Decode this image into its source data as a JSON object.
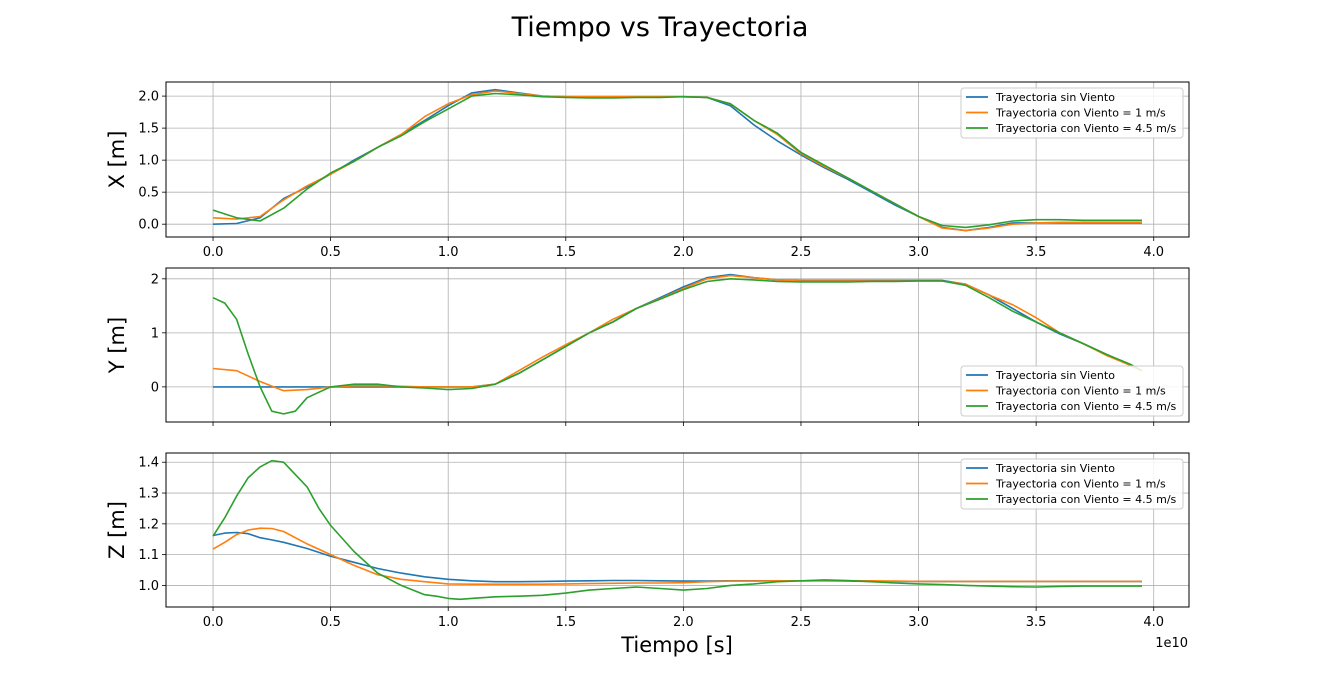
{
  "figure": {
    "title": "Tiempo vs Trayectoria",
    "xlabel": "Tiempo [s]",
    "x_offset_text": "1e10"
  },
  "colors": {
    "sin_viento": "#1f77b4",
    "viento_1": "#ff7f0e",
    "viento_45": "#2ca02c",
    "grid": "#b0b0b0"
  },
  "chart_data": [
    {
      "type": "line",
      "ylabel": "X [m]",
      "grid": true,
      "legend_position": "upper right",
      "xlim": [
        -0.2,
        4.15
      ],
      "ylim": [
        -0.2,
        2.22
      ],
      "x_ticks": [
        0.0,
        0.5,
        1.0,
        1.5,
        2.0,
        2.5,
        3.0,
        3.5,
        4.0
      ],
      "x_tick_labels": [
        "0.0",
        "0.5",
        "1.0",
        "1.5",
        "2.0",
        "2.5",
        "3.0",
        "3.5",
        "4.0"
      ],
      "y_ticks": [
        0.0,
        0.5,
        1.0,
        1.5,
        2.0
      ],
      "y_tick_labels": [
        "0.0",
        "0.5",
        "1.0",
        "1.5",
        "2.0"
      ],
      "series": [
        {
          "name": "Trayectoria sin Viento",
          "x": [
            0,
            0.1,
            0.2,
            0.3,
            0.4,
            0.5,
            0.6,
            0.7,
            0.8,
            0.9,
            1.0,
            1.1,
            1.2,
            1.3,
            1.4,
            1.5,
            1.6,
            1.7,
            1.8,
            1.9,
            2.0,
            2.1,
            2.2,
            2.3,
            2.4,
            2.5,
            2.6,
            2.7,
            2.8,
            2.9,
            3.0,
            3.1,
            3.2,
            3.3,
            3.4,
            3.5,
            3.6,
            3.7,
            3.8,
            3.9,
            3.95
          ],
          "y": [
            0.0,
            0.01,
            0.1,
            0.4,
            0.58,
            0.78,
            1.0,
            1.2,
            1.4,
            1.62,
            1.85,
            2.05,
            2.1,
            2.05,
            2.0,
            1.99,
            1.99,
            1.99,
            1.99,
            1.99,
            1.99,
            1.98,
            1.85,
            1.55,
            1.3,
            1.08,
            0.88,
            0.7,
            0.5,
            0.3,
            0.12,
            -0.05,
            -0.1,
            -0.05,
            0.02,
            0.02,
            0.02,
            0.02,
            0.02,
            0.02,
            0.02
          ]
        },
        {
          "name": "Trayectoria con Viento = 1 m/s",
          "x": [
            0,
            0.1,
            0.2,
            0.3,
            0.4,
            0.5,
            0.6,
            0.7,
            0.8,
            0.9,
            1.0,
            1.1,
            1.2,
            1.3,
            1.4,
            1.5,
            1.6,
            1.7,
            1.8,
            1.9,
            2.0,
            2.1,
            2.2,
            2.3,
            2.4,
            2.5,
            2.6,
            2.7,
            2.8,
            2.9,
            3.0,
            3.1,
            3.2,
            3.3,
            3.4,
            3.5,
            3.6,
            3.7,
            3.8,
            3.9,
            3.95
          ],
          "y": [
            0.1,
            0.08,
            0.12,
            0.38,
            0.6,
            0.78,
            0.98,
            1.2,
            1.4,
            1.68,
            1.88,
            2.02,
            2.08,
            2.04,
            2.0,
            1.99,
            1.99,
            1.99,
            1.99,
            1.99,
            1.99,
            1.98,
            1.88,
            1.62,
            1.4,
            1.1,
            0.9,
            0.72,
            0.52,
            0.32,
            0.12,
            -0.06,
            -0.1,
            -0.06,
            0.0,
            0.02,
            0.03,
            0.03,
            0.03,
            0.03,
            0.03
          ]
        },
        {
          "name": "Trayectoria con Viento = 4.5 m/s",
          "x": [
            0,
            0.1,
            0.2,
            0.3,
            0.4,
            0.5,
            0.6,
            0.7,
            0.8,
            0.9,
            1.0,
            1.1,
            1.2,
            1.3,
            1.4,
            1.5,
            1.6,
            1.7,
            1.8,
            1.9,
            2.0,
            2.1,
            2.2,
            2.3,
            2.4,
            2.5,
            2.6,
            2.7,
            2.8,
            2.9,
            3.0,
            3.1,
            3.2,
            3.3,
            3.4,
            3.5,
            3.6,
            3.7,
            3.8,
            3.9,
            3.95
          ],
          "y": [
            0.22,
            0.1,
            0.05,
            0.25,
            0.55,
            0.8,
            0.98,
            1.2,
            1.38,
            1.6,
            1.8,
            2.0,
            2.04,
            2.02,
            1.99,
            1.98,
            1.97,
            1.97,
            1.98,
            1.98,
            1.99,
            1.98,
            1.88,
            1.62,
            1.42,
            1.12,
            0.92,
            0.72,
            0.52,
            0.32,
            0.12,
            -0.02,
            -0.05,
            -0.01,
            0.05,
            0.07,
            0.07,
            0.06,
            0.06,
            0.06,
            0.06
          ]
        }
      ]
    },
    {
      "type": "line",
      "ylabel": "Y [m]",
      "grid": true,
      "legend_position": "lower right",
      "xlim": [
        -0.2,
        4.15
      ],
      "ylim": [
        -0.65,
        2.2
      ],
      "x_ticks": [
        0.0,
        0.5,
        1.0,
        1.5,
        2.0,
        2.5,
        3.0,
        3.5,
        4.0
      ],
      "x_tick_labels": [
        "",
        "",
        "",
        "",
        "",
        "",
        "",
        "",
        ""
      ],
      "y_ticks": [
        0,
        1,
        2
      ],
      "y_tick_labels": [
        "0",
        "1",
        "2"
      ],
      "series": [
        {
          "name": "Trayectoria sin Viento",
          "x": [
            0,
            0.1,
            0.2,
            0.3,
            0.4,
            0.5,
            0.6,
            0.7,
            0.8,
            0.9,
            1.0,
            1.1,
            1.2,
            1.3,
            1.4,
            1.5,
            1.6,
            1.7,
            1.8,
            1.9,
            2.0,
            2.1,
            2.2,
            2.3,
            2.4,
            2.5,
            2.6,
            2.7,
            2.8,
            2.9,
            3.0,
            3.1,
            3.2,
            3.3,
            3.4,
            3.5,
            3.6,
            3.7,
            3.8,
            3.9,
            3.95
          ],
          "y": [
            0,
            0,
            0,
            0,
            0,
            0,
            0,
            0,
            0,
            0,
            0,
            0,
            0.05,
            0.25,
            0.5,
            0.75,
            1.0,
            1.2,
            1.45,
            1.65,
            1.85,
            2.02,
            2.08,
            2.02,
            1.98,
            1.97,
            1.97,
            1.97,
            1.97,
            1.97,
            1.97,
            1.97,
            1.9,
            1.7,
            1.45,
            1.2,
            0.98,
            0.8,
            0.6,
            0.4,
            0.3
          ]
        },
        {
          "name": "Trayectoria con Viento = 1 m/s",
          "x": [
            0,
            0.1,
            0.2,
            0.3,
            0.4,
            0.5,
            0.6,
            0.7,
            0.8,
            0.9,
            1.0,
            1.1,
            1.2,
            1.3,
            1.4,
            1.5,
            1.6,
            1.7,
            1.8,
            1.9,
            2.0,
            2.1,
            2.2,
            2.3,
            2.4,
            2.5,
            2.6,
            2.7,
            2.8,
            2.9,
            3.0,
            3.1,
            3.2,
            3.3,
            3.4,
            3.5,
            3.6,
            3.7,
            3.8,
            3.9,
            3.95
          ],
          "y": [
            0.34,
            0.3,
            0.1,
            -0.07,
            -0.05,
            0.0,
            0.02,
            0.02,
            0.01,
            0.0,
            0.0,
            0.0,
            0.05,
            0.3,
            0.55,
            0.78,
            1.0,
            1.25,
            1.45,
            1.63,
            1.82,
            2.0,
            2.06,
            2.02,
            1.98,
            1.96,
            1.96,
            1.96,
            1.96,
            1.96,
            1.96,
            1.96,
            1.9,
            1.7,
            1.52,
            1.28,
            1.0,
            0.8,
            0.58,
            0.4,
            0.3
          ]
        },
        {
          "name": "Trayectoria con Viento = 4.5 m/s",
          "x": [
            0,
            0.05,
            0.1,
            0.15,
            0.2,
            0.25,
            0.3,
            0.35,
            0.4,
            0.5,
            0.6,
            0.7,
            0.8,
            0.9,
            1.0,
            1.1,
            1.2,
            1.3,
            1.4,
            1.5,
            1.6,
            1.7,
            1.8,
            1.9,
            2.0,
            2.1,
            2.2,
            2.3,
            2.4,
            2.5,
            2.6,
            2.7,
            2.8,
            2.9,
            3.0,
            3.1,
            3.2,
            3.3,
            3.4,
            3.5,
            3.6,
            3.7,
            3.8,
            3.9,
            3.95
          ],
          "y": [
            1.65,
            1.55,
            1.25,
            0.6,
            0.0,
            -0.45,
            -0.5,
            -0.45,
            -0.2,
            0.0,
            0.05,
            0.05,
            0.0,
            -0.02,
            -0.05,
            -0.03,
            0.05,
            0.25,
            0.5,
            0.75,
            1.0,
            1.2,
            1.45,
            1.62,
            1.8,
            1.95,
            2.0,
            1.98,
            1.95,
            1.94,
            1.94,
            1.94,
            1.95,
            1.95,
            1.96,
            1.96,
            1.88,
            1.65,
            1.4,
            1.2,
            1.0,
            0.8,
            0.6,
            0.42,
            0.3
          ]
        }
      ]
    },
    {
      "type": "line",
      "ylabel": "Z [m]",
      "grid": true,
      "legend_position": "upper right",
      "xlim": [
        -0.2,
        4.15
      ],
      "ylim": [
        0.93,
        1.43
      ],
      "x_ticks": [
        0.0,
        0.5,
        1.0,
        1.5,
        2.0,
        2.5,
        3.0,
        3.5,
        4.0
      ],
      "x_tick_labels": [
        "0.0",
        "0.5",
        "1.0",
        "1.5",
        "2.0",
        "2.5",
        "3.0",
        "3.5",
        "4.0"
      ],
      "y_ticks": [
        1.0,
        1.1,
        1.2,
        1.3,
        1.4
      ],
      "y_tick_labels": [
        "1.0",
        "1.1",
        "1.2",
        "1.3",
        "1.4"
      ],
      "series": [
        {
          "name": "Trayectoria sin Viento",
          "x": [
            0,
            0.05,
            0.1,
            0.15,
            0.2,
            0.25,
            0.3,
            0.4,
            0.5,
            0.6,
            0.7,
            0.8,
            0.9,
            1.0,
            1.1,
            1.2,
            1.3,
            1.4,
            1.5,
            1.6,
            1.7,
            1.8,
            1.9,
            2.0,
            2.1,
            2.2,
            2.3,
            2.4,
            2.5,
            2.6,
            2.7,
            2.8,
            2.9,
            3.0,
            3.1,
            3.2,
            3.3,
            3.4,
            3.5,
            3.6,
            3.7,
            3.8,
            3.9,
            3.95
          ],
          "y": [
            1.162,
            1.17,
            1.172,
            1.168,
            1.155,
            1.148,
            1.14,
            1.12,
            1.095,
            1.075,
            1.055,
            1.04,
            1.028,
            1.02,
            1.015,
            1.012,
            1.012,
            1.013,
            1.014,
            1.015,
            1.016,
            1.016,
            1.015,
            1.014,
            1.014,
            1.015,
            1.015,
            1.015,
            1.015,
            1.015,
            1.014,
            1.013,
            1.013,
            1.013,
            1.013,
            1.013,
            1.013,
            1.013,
            1.013,
            1.013,
            1.013,
            1.013,
            1.013,
            1.013
          ]
        },
        {
          "name": "Trayectoria con Viento = 1 m/s",
          "x": [
            0,
            0.05,
            0.1,
            0.15,
            0.2,
            0.25,
            0.3,
            0.4,
            0.5,
            0.6,
            0.7,
            0.8,
            0.9,
            1.0,
            1.1,
            1.2,
            1.3,
            1.4,
            1.5,
            1.6,
            1.7,
            1.8,
            1.9,
            2.0,
            2.1,
            2.2,
            2.3,
            2.4,
            2.5,
            2.6,
            2.7,
            2.8,
            2.9,
            3.0,
            3.1,
            3.2,
            3.3,
            3.4,
            3.5,
            3.6,
            3.7,
            3.8,
            3.9,
            3.95
          ],
          "y": [
            1.118,
            1.14,
            1.165,
            1.18,
            1.186,
            1.185,
            1.175,
            1.135,
            1.1,
            1.065,
            1.035,
            1.02,
            1.012,
            1.005,
            1.004,
            1.004,
            1.004,
            1.004,
            1.005,
            1.006,
            1.007,
            1.008,
            1.008,
            1.009,
            1.012,
            1.014,
            1.014,
            1.015,
            1.015,
            1.015,
            1.015,
            1.015,
            1.014,
            1.013,
            1.013,
            1.013,
            1.013,
            1.013,
            1.013,
            1.013,
            1.013,
            1.013,
            1.013,
            1.013
          ]
        },
        {
          "name": "Trayectoria con Viento = 4.5 m/s",
          "x": [
            0,
            0.05,
            0.1,
            0.15,
            0.2,
            0.25,
            0.3,
            0.4,
            0.45,
            0.5,
            0.6,
            0.7,
            0.8,
            0.9,
            0.95,
            1.0,
            1.05,
            1.1,
            1.2,
            1.3,
            1.4,
            1.5,
            1.6,
            1.7,
            1.8,
            1.9,
            2.0,
            2.1,
            2.2,
            2.3,
            2.4,
            2.5,
            2.6,
            2.7,
            2.8,
            2.9,
            3.0,
            3.1,
            3.2,
            3.3,
            3.4,
            3.5,
            3.6,
            3.7,
            3.8,
            3.9,
            3.95
          ],
          "y": [
            1.16,
            1.22,
            1.29,
            1.35,
            1.385,
            1.405,
            1.4,
            1.32,
            1.25,
            1.195,
            1.11,
            1.04,
            1.0,
            0.97,
            0.965,
            0.958,
            0.955,
            0.958,
            0.963,
            0.965,
            0.968,
            0.975,
            0.985,
            0.99,
            0.995,
            0.99,
            0.985,
            0.99,
            1.0,
            1.005,
            1.012,
            1.015,
            1.018,
            1.016,
            1.012,
            1.008,
            1.005,
            1.003,
            1.0,
            0.998,
            0.996,
            0.995,
            0.997,
            0.998,
            0.998,
            0.998,
            0.998
          ]
        }
      ]
    }
  ]
}
